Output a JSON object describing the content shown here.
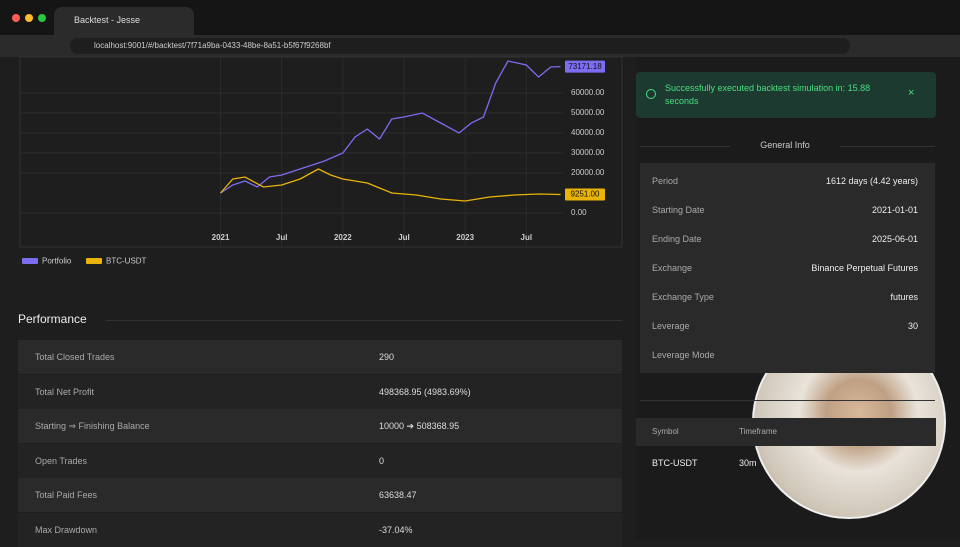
{
  "browser": {
    "tab_title": "Backtest - Jesse",
    "url": "localhost:9001/#/backtest/7f71a9ba-0433-48be-8a51-b5f67f9268bf"
  },
  "chart": {
    "type": "line",
    "xlim": [
      2019.36,
      2023.8
    ],
    "ylim": [
      0,
      76500
    ],
    "xticks": [
      {
        "value": 2021,
        "label": "2021"
      },
      {
        "value": 2021.5,
        "label": "Jul"
      },
      {
        "value": 2022,
        "label": "2022"
      },
      {
        "value": 2022.5,
        "label": "Jul"
      },
      {
        "value": 2023,
        "label": "2023"
      },
      {
        "value": 2023.5,
        "label": "Jul"
      }
    ],
    "yticks": [
      {
        "value": 0,
        "label": "0.00"
      },
      {
        "value": 20000,
        "label": "20000.00"
      },
      {
        "value": 30000,
        "label": "30000.00"
      },
      {
        "value": 40000,
        "label": "40000.00"
      },
      {
        "value": 50000,
        "label": "50000.00"
      },
      {
        "value": 60000,
        "label": "60000.00"
      }
    ],
    "series": [
      {
        "name": "Portfolio",
        "color": "#7b6cf0",
        "last_label": "73171.18",
        "x": [
          2021.0,
          2021.1,
          2021.2,
          2021.3,
          2021.4,
          2021.5,
          2021.7,
          2021.85,
          2022.0,
          2022.1,
          2022.2,
          2022.3,
          2022.4,
          2022.5,
          2022.65,
          2022.8,
          2022.95,
          2023.05,
          2023.15,
          2023.25,
          2023.35,
          2023.5,
          2023.6,
          2023.7,
          2023.78
        ],
        "values": [
          10000,
          14000,
          16000,
          13000,
          18000,
          19000,
          23000,
          26000,
          30000,
          38000,
          42000,
          37000,
          47000,
          48000,
          50000,
          45000,
          40000,
          45000,
          48000,
          65000,
          76000,
          74000,
          68000,
          73000,
          73171.18
        ]
      },
      {
        "name": "BTC-USDT",
        "color": "#eab308",
        "last_label": "9251.00",
        "x": [
          2021.0,
          2021.1,
          2021.2,
          2021.35,
          2021.5,
          2021.65,
          2021.8,
          2021.9,
          2022.0,
          2022.2,
          2022.4,
          2022.6,
          2022.8,
          2023.0,
          2023.2,
          2023.4,
          2023.6,
          2023.78
        ],
        "values": [
          10000,
          17000,
          18000,
          13000,
          14000,
          17000,
          22000,
          19000,
          17000,
          15000,
          10000,
          9000,
          7000,
          6000,
          8000,
          9000,
          9500,
          9251
        ]
      }
    ]
  },
  "performance": {
    "title": "Performance",
    "rows": [
      [
        "Total Closed Trades",
        "290"
      ],
      [
        "Total Net Profit",
        "498368.95 (4983.69%)"
      ],
      [
        "Starting ⇒ Finishing Balance",
        "10000 ➔ 508368.95"
      ],
      [
        "Open Trades",
        "0"
      ],
      [
        "Total Paid Fees",
        "63638.47"
      ],
      [
        "Max Drawdown",
        "-37.04%"
      ]
    ]
  },
  "toast": {
    "message": "Successfully executed backtest simulation in: 15.88 seconds"
  },
  "general_info": {
    "title": "General Info",
    "rows": [
      [
        "Period",
        "1612 days (4.42 years)"
      ],
      [
        "Starting Date",
        "2021-01-01"
      ],
      [
        "Ending Date",
        "2025-06-01"
      ],
      [
        "Exchange",
        "Binance Perpetual Futures"
      ],
      [
        "Exchange Type",
        "futures"
      ],
      [
        "Leverage",
        "30"
      ],
      [
        "Leverage Mode",
        ""
      ]
    ]
  },
  "routes": {
    "headers": [
      "Symbol",
      "Timeframe"
    ],
    "rows": [
      [
        "BTC-USDT",
        "30m"
      ]
    ]
  }
}
